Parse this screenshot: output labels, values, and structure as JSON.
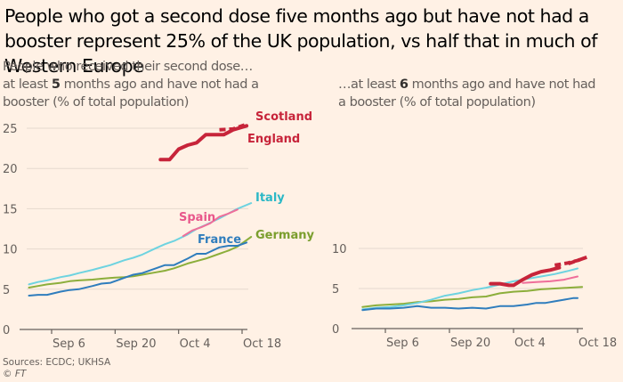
{
  "title": "People who got a second dose five months ago but have not had a booster represent 25% of the UK population, vs half that in much of Western Europe",
  "intro": "People who received their second dose…",
  "source": "Sources: ECDC; UKHSA",
  "copyright": "© FT",
  "colors": {
    "background": "#FFF1E5",
    "England": "#C7243A",
    "Scotland": "#C7243A",
    "Italy": "#6ED3E0",
    "Spain": "#EF6E9A",
    "France": "#2F7DBD",
    "Germany": "#8CAE3B",
    "grid": "#E6D9CE",
    "axis": "#66605c"
  },
  "chart_data": [
    {
      "type": "line",
      "title": "",
      "subtitle_parts": [
        "at least ",
        "5",
        " months ago and have not had a booster (% of total population)"
      ],
      "xlabel": "",
      "ylabel": "% of total population",
      "x_unit": "days since Sep 1",
      "xticks": [
        {
          "x": 5,
          "label": "Sep 6"
        },
        {
          "x": 19,
          "label": "Sep 20"
        },
        {
          "x": 33,
          "label": "Oct 4"
        },
        {
          "x": 47,
          "label": "Oct 18"
        }
      ],
      "xlim": [
        -0.5,
        51
      ],
      "ylim": [
        0,
        25
      ],
      "yticks": [
        0,
        5,
        10,
        15,
        20,
        25
      ],
      "grid": true,
      "series": [
        {
          "name": "Germany",
          "dashed": false,
          "thick": false,
          "x": [
            0,
            2,
            4,
            7,
            9,
            11,
            14,
            16,
            18,
            21,
            23,
            25,
            28,
            30,
            32,
            35,
            37,
            39,
            42,
            44,
            46,
            49
          ],
          "values": [
            5.2,
            5.4,
            5.6,
            5.8,
            6.0,
            6.1,
            6.2,
            6.3,
            6.4,
            6.5,
            6.6,
            6.8,
            7.1,
            7.3,
            7.6,
            8.2,
            8.5,
            8.8,
            9.4,
            9.8,
            10.3,
            11.5
          ],
          "label": "Germany"
        },
        {
          "name": "France",
          "dashed": false,
          "thick": false,
          "x": [
            0,
            2,
            4,
            7,
            9,
            11,
            14,
            16,
            18,
            21,
            23,
            25,
            28,
            30,
            32,
            35,
            37,
            39,
            42,
            44,
            46,
            48
          ],
          "values": [
            4.2,
            4.3,
            4.3,
            4.7,
            4.9,
            5.0,
            5.4,
            5.7,
            5.8,
            6.4,
            6.8,
            7.0,
            7.6,
            8.0,
            8.0,
            8.8,
            9.4,
            9.4,
            10.2,
            10.4,
            10.4,
            10.8
          ],
          "label": "France"
        },
        {
          "name": "Italy",
          "dashed": false,
          "thick": false,
          "x": [
            0,
            2,
            4,
            7,
            9,
            11,
            14,
            16,
            18,
            21,
            23,
            25,
            28,
            30,
            32,
            35,
            37,
            39,
            42,
            44,
            46,
            49
          ],
          "values": [
            5.6,
            5.9,
            6.1,
            6.5,
            6.7,
            7.0,
            7.4,
            7.7,
            8.0,
            8.6,
            8.9,
            9.3,
            10.1,
            10.6,
            11.0,
            11.8,
            12.5,
            13.0,
            13.8,
            14.4,
            15.0,
            15.7
          ],
          "label": "Italy"
        },
        {
          "name": "Spain",
          "dashed": false,
          "thick": false,
          "x": [
            34,
            36,
            38,
            40,
            42,
            44,
            46
          ],
          "values": [
            11.6,
            12.3,
            12.7,
            13.2,
            14.0,
            14.4,
            14.9
          ],
          "label": "Spain"
        },
        {
          "name": "England",
          "dashed": false,
          "thick": true,
          "x": [
            29,
            31,
            33,
            35,
            37,
            39,
            41,
            43,
            45,
            48
          ],
          "values": [
            21.1,
            21.1,
            22.4,
            22.9,
            23.2,
            24.2,
            24.2,
            24.2,
            24.8,
            25.3
          ],
          "label": "England"
        },
        {
          "name": "Scotland",
          "dashed": true,
          "thick": true,
          "x": [
            42,
            45,
            48
          ],
          "values": [
            24.8,
            24.9,
            25.5
          ],
          "label": "Scotland"
        }
      ]
    },
    {
      "type": "line",
      "title": "",
      "subtitle_parts": [
        "…at least ",
        "6",
        " months ago and have not had a booster (% of total population)"
      ],
      "xlabel": "",
      "ylabel": "% of total population",
      "x_unit": "days since Sep 1",
      "xticks": [
        {
          "x": 5,
          "label": "Sep 6"
        },
        {
          "x": 19,
          "label": "Sep 20"
        },
        {
          "x": 33,
          "label": "Oct 4"
        },
        {
          "x": 47,
          "label": "Oct 18"
        }
      ],
      "xlim": [
        -2.5,
        51
      ],
      "ylim": [
        0,
        10
      ],
      "yticks": [
        0,
        5,
        10
      ],
      "grid": true,
      "series": [
        {
          "name": "Germany",
          "dashed": false,
          "thick": false,
          "x": [
            0,
            3,
            6,
            9,
            12,
            15,
            18,
            21,
            24,
            27,
            30,
            33,
            36,
            39,
            42,
            45,
            48
          ],
          "values": [
            2.7,
            2.9,
            3.0,
            3.1,
            3.3,
            3.4,
            3.6,
            3.7,
            3.9,
            4.0,
            4.4,
            4.6,
            4.7,
            4.9,
            5.0,
            5.1,
            5.2
          ]
        },
        {
          "name": "Italy",
          "dashed": false,
          "thick": false,
          "x": [
            0,
            3,
            6,
            9,
            12,
            15,
            18,
            21,
            24,
            27,
            30,
            33,
            36,
            39,
            42,
            45,
            47
          ],
          "values": [
            2.4,
            2.6,
            2.7,
            2.9,
            3.2,
            3.6,
            4.1,
            4.4,
            4.8,
            5.1,
            5.5,
            5.9,
            6.2,
            6.5,
            6.8,
            7.2,
            7.5
          ]
        },
        {
          "name": "France",
          "dashed": false,
          "thick": false,
          "x": [
            0,
            3,
            6,
            9,
            12,
            15,
            18,
            21,
            24,
            27,
            30,
            33,
            36,
            38,
            40,
            42,
            44,
            46,
            47
          ],
          "values": [
            2.3,
            2.5,
            2.5,
            2.6,
            2.8,
            2.6,
            2.6,
            2.5,
            2.6,
            2.5,
            2.8,
            2.8,
            3.0,
            3.2,
            3.2,
            3.4,
            3.6,
            3.8,
            3.8
          ]
        },
        {
          "name": "Spain",
          "dashed": false,
          "thick": false,
          "x": [
            35,
            38,
            41,
            44,
            47
          ],
          "values": [
            5.7,
            5.8,
            5.9,
            6.1,
            6.5
          ]
        },
        {
          "name": "England",
          "dashed": false,
          "thick": true,
          "x": [
            28,
            30,
            32,
            33,
            35,
            37,
            39,
            41,
            43
          ],
          "values": [
            5.6,
            5.6,
            5.4,
            5.4,
            6.1,
            6.7,
            7.1,
            7.3,
            7.6
          ]
        },
        {
          "name": "Scotland",
          "dashed": true,
          "thick": true,
          "x": [
            42,
            45,
            47,
            49
          ],
          "values": [
            7.9,
            8.2,
            8.5,
            8.9
          ]
        },
        {
          "name": "Scotland-2",
          "dashed": true,
          "thick": true,
          "x": [
            45,
            47,
            49
          ],
          "values": [
            8.1,
            8.5,
            8.9
          ]
        }
      ]
    }
  ]
}
